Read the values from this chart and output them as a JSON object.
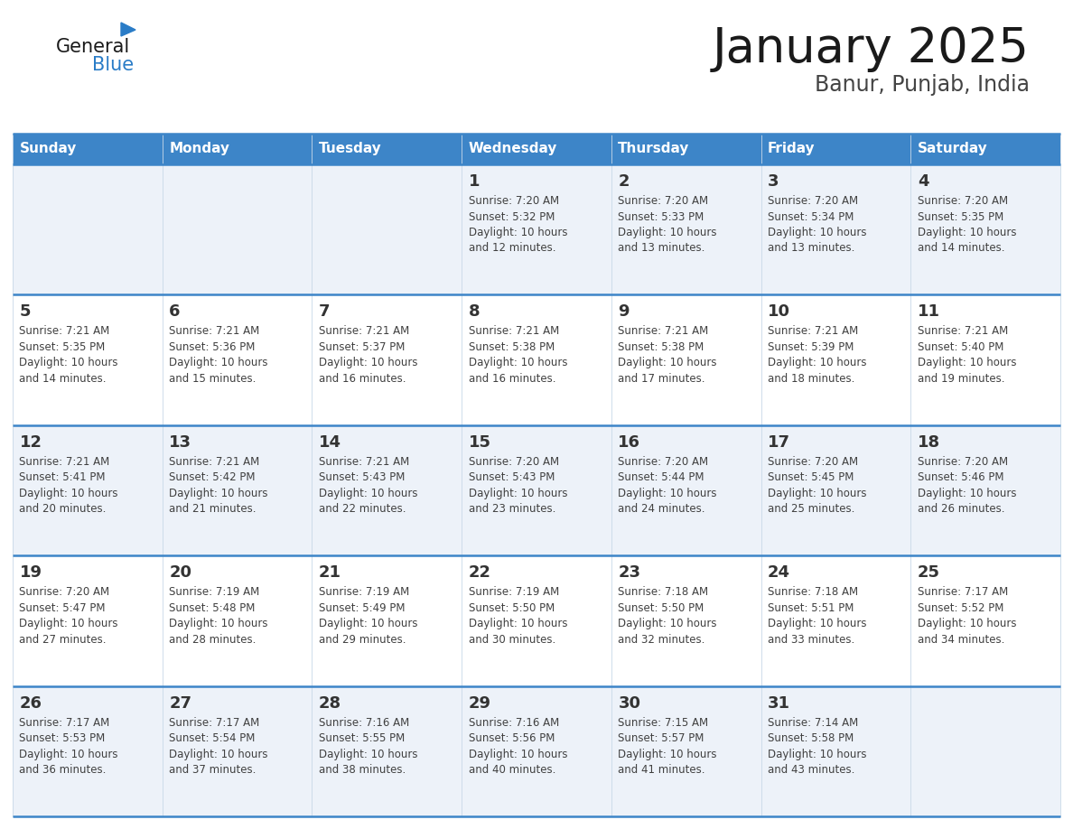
{
  "title": "January 2025",
  "subtitle": "Banur, Punjab, India",
  "header_bg_color": "#3d85c8",
  "header_text_color": "#ffffff",
  "day_names": [
    "Sunday",
    "Monday",
    "Tuesday",
    "Wednesday",
    "Thursday",
    "Friday",
    "Saturday"
  ],
  "cell_bg_light": "#edf2f9",
  "cell_bg_white": "#ffffff",
  "row_line_color": "#3d85c8",
  "text_color": "#404040",
  "number_color": "#333333",
  "logo_general_color": "#1a1a1a",
  "logo_blue_color": "#2a7cc7",
  "calendar": [
    [
      {
        "day": 0
      },
      {
        "day": 0
      },
      {
        "day": 0
      },
      {
        "day": 1,
        "sunrise": "7:20 AM",
        "sunset": "5:32 PM",
        "daylight": "10 hours",
        "daylight2": "and 12 minutes."
      },
      {
        "day": 2,
        "sunrise": "7:20 AM",
        "sunset": "5:33 PM",
        "daylight": "10 hours",
        "daylight2": "and 13 minutes."
      },
      {
        "day": 3,
        "sunrise": "7:20 AM",
        "sunset": "5:34 PM",
        "daylight": "10 hours",
        "daylight2": "and 13 minutes."
      },
      {
        "day": 4,
        "sunrise": "7:20 AM",
        "sunset": "5:35 PM",
        "daylight": "10 hours",
        "daylight2": "and 14 minutes."
      }
    ],
    [
      {
        "day": 5,
        "sunrise": "7:21 AM",
        "sunset": "5:35 PM",
        "daylight": "10 hours",
        "daylight2": "and 14 minutes."
      },
      {
        "day": 6,
        "sunrise": "7:21 AM",
        "sunset": "5:36 PM",
        "daylight": "10 hours",
        "daylight2": "and 15 minutes."
      },
      {
        "day": 7,
        "sunrise": "7:21 AM",
        "sunset": "5:37 PM",
        "daylight": "10 hours",
        "daylight2": "and 16 minutes."
      },
      {
        "day": 8,
        "sunrise": "7:21 AM",
        "sunset": "5:38 PM",
        "daylight": "10 hours",
        "daylight2": "and 16 minutes."
      },
      {
        "day": 9,
        "sunrise": "7:21 AM",
        "sunset": "5:38 PM",
        "daylight": "10 hours",
        "daylight2": "and 17 minutes."
      },
      {
        "day": 10,
        "sunrise": "7:21 AM",
        "sunset": "5:39 PM",
        "daylight": "10 hours",
        "daylight2": "and 18 minutes."
      },
      {
        "day": 11,
        "sunrise": "7:21 AM",
        "sunset": "5:40 PM",
        "daylight": "10 hours",
        "daylight2": "and 19 minutes."
      }
    ],
    [
      {
        "day": 12,
        "sunrise": "7:21 AM",
        "sunset": "5:41 PM",
        "daylight": "10 hours",
        "daylight2": "and 20 minutes."
      },
      {
        "day": 13,
        "sunrise": "7:21 AM",
        "sunset": "5:42 PM",
        "daylight": "10 hours",
        "daylight2": "and 21 minutes."
      },
      {
        "day": 14,
        "sunrise": "7:21 AM",
        "sunset": "5:43 PM",
        "daylight": "10 hours",
        "daylight2": "and 22 minutes."
      },
      {
        "day": 15,
        "sunrise": "7:20 AM",
        "sunset": "5:43 PM",
        "daylight": "10 hours",
        "daylight2": "and 23 minutes."
      },
      {
        "day": 16,
        "sunrise": "7:20 AM",
        "sunset": "5:44 PM",
        "daylight": "10 hours",
        "daylight2": "and 24 minutes."
      },
      {
        "day": 17,
        "sunrise": "7:20 AM",
        "sunset": "5:45 PM",
        "daylight": "10 hours",
        "daylight2": "and 25 minutes."
      },
      {
        "day": 18,
        "sunrise": "7:20 AM",
        "sunset": "5:46 PM",
        "daylight": "10 hours",
        "daylight2": "and 26 minutes."
      }
    ],
    [
      {
        "day": 19,
        "sunrise": "7:20 AM",
        "sunset": "5:47 PM",
        "daylight": "10 hours",
        "daylight2": "and 27 minutes."
      },
      {
        "day": 20,
        "sunrise": "7:19 AM",
        "sunset": "5:48 PM",
        "daylight": "10 hours",
        "daylight2": "and 28 minutes."
      },
      {
        "day": 21,
        "sunrise": "7:19 AM",
        "sunset": "5:49 PM",
        "daylight": "10 hours",
        "daylight2": "and 29 minutes."
      },
      {
        "day": 22,
        "sunrise": "7:19 AM",
        "sunset": "5:50 PM",
        "daylight": "10 hours",
        "daylight2": "and 30 minutes."
      },
      {
        "day": 23,
        "sunrise": "7:18 AM",
        "sunset": "5:50 PM",
        "daylight": "10 hours",
        "daylight2": "and 32 minutes."
      },
      {
        "day": 24,
        "sunrise": "7:18 AM",
        "sunset": "5:51 PM",
        "daylight": "10 hours",
        "daylight2": "and 33 minutes."
      },
      {
        "day": 25,
        "sunrise": "7:17 AM",
        "sunset": "5:52 PM",
        "daylight": "10 hours",
        "daylight2": "and 34 minutes."
      }
    ],
    [
      {
        "day": 26,
        "sunrise": "7:17 AM",
        "sunset": "5:53 PM",
        "daylight": "10 hours",
        "daylight2": "and 36 minutes."
      },
      {
        "day": 27,
        "sunrise": "7:17 AM",
        "sunset": "5:54 PM",
        "daylight": "10 hours",
        "daylight2": "and 37 minutes."
      },
      {
        "day": 28,
        "sunrise": "7:16 AM",
        "sunset": "5:55 PM",
        "daylight": "10 hours",
        "daylight2": "and 38 minutes."
      },
      {
        "day": 29,
        "sunrise": "7:16 AM",
        "sunset": "5:56 PM",
        "daylight": "10 hours",
        "daylight2": "and 40 minutes."
      },
      {
        "day": 30,
        "sunrise": "7:15 AM",
        "sunset": "5:57 PM",
        "daylight": "10 hours",
        "daylight2": "and 41 minutes."
      },
      {
        "day": 31,
        "sunrise": "7:14 AM",
        "sunset": "5:58 PM",
        "daylight": "10 hours",
        "daylight2": "and 43 minutes."
      },
      {
        "day": 0
      }
    ]
  ],
  "fig_width": 11.88,
  "fig_height": 9.18,
  "dpi": 100
}
